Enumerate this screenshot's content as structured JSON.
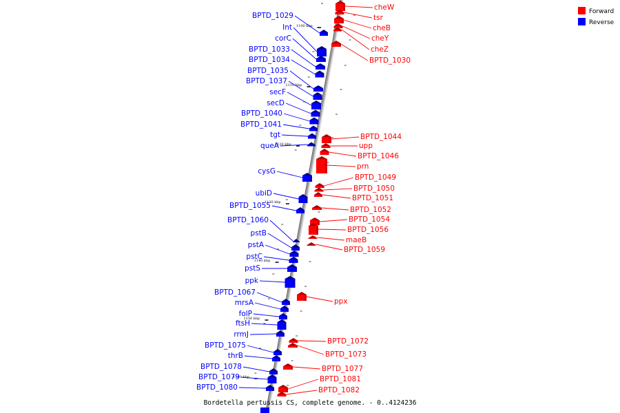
{
  "caption": "Bordetella pertussis CS, complete genome. - 0..4124236",
  "legend": [
    {
      "label": "Forward",
      "color": "#ff0000"
    },
    {
      "label": "Reverse",
      "color": "#0000ff"
    }
  ],
  "colors": {
    "forward": "#ff0000",
    "reverse": "#0000ff",
    "axis": "#9a9a9a"
  },
  "ticks": [
    "1100 kbp",
    "1110 kbp",
    "1120 kbp",
    "1130 kbp",
    "1140 kbp",
    "1150 kbp",
    "1160 kbp"
  ],
  "reverse_genes": [
    "BPTD_1029",
    "Int",
    "corC",
    "BPTD_1033",
    "BPTD_1034",
    "BPTD_1035",
    "BPTD_1037",
    "secF",
    "secD",
    "BPTD_1040",
    "BPTD_1041",
    "tgt",
    "queA",
    "cysG",
    "ubiD",
    "BPTD_1055",
    "BPTD_1060",
    "pstB",
    "pstA",
    "pstC",
    "pstS",
    "ppk",
    "BPTD_1067",
    "mrsA",
    "folP",
    "ftsH",
    "rrmJ",
    "BPTD_1075",
    "thrB",
    "BPTD_1078",
    "BPTD_1079",
    "BPTD_1080"
  ],
  "forward_genes": [
    "cheW",
    "tsr",
    "cheB",
    "cheY",
    "cheZ",
    "BPTD_1030",
    "BPTD_1044",
    "upp",
    "BPTD_1046",
    "prn",
    "BPTD_1049",
    "BPTD_1050",
    "BPTD_1051",
    "BPTD_1052",
    "BPTD_1054",
    "BPTD_1056",
    "maeB",
    "BPTD_1059",
    "ppx",
    "BPTD_1072",
    "BPTD_1073",
    "BPTD_1077",
    "BPTD_1081",
    "BPTD_1082"
  ]
}
